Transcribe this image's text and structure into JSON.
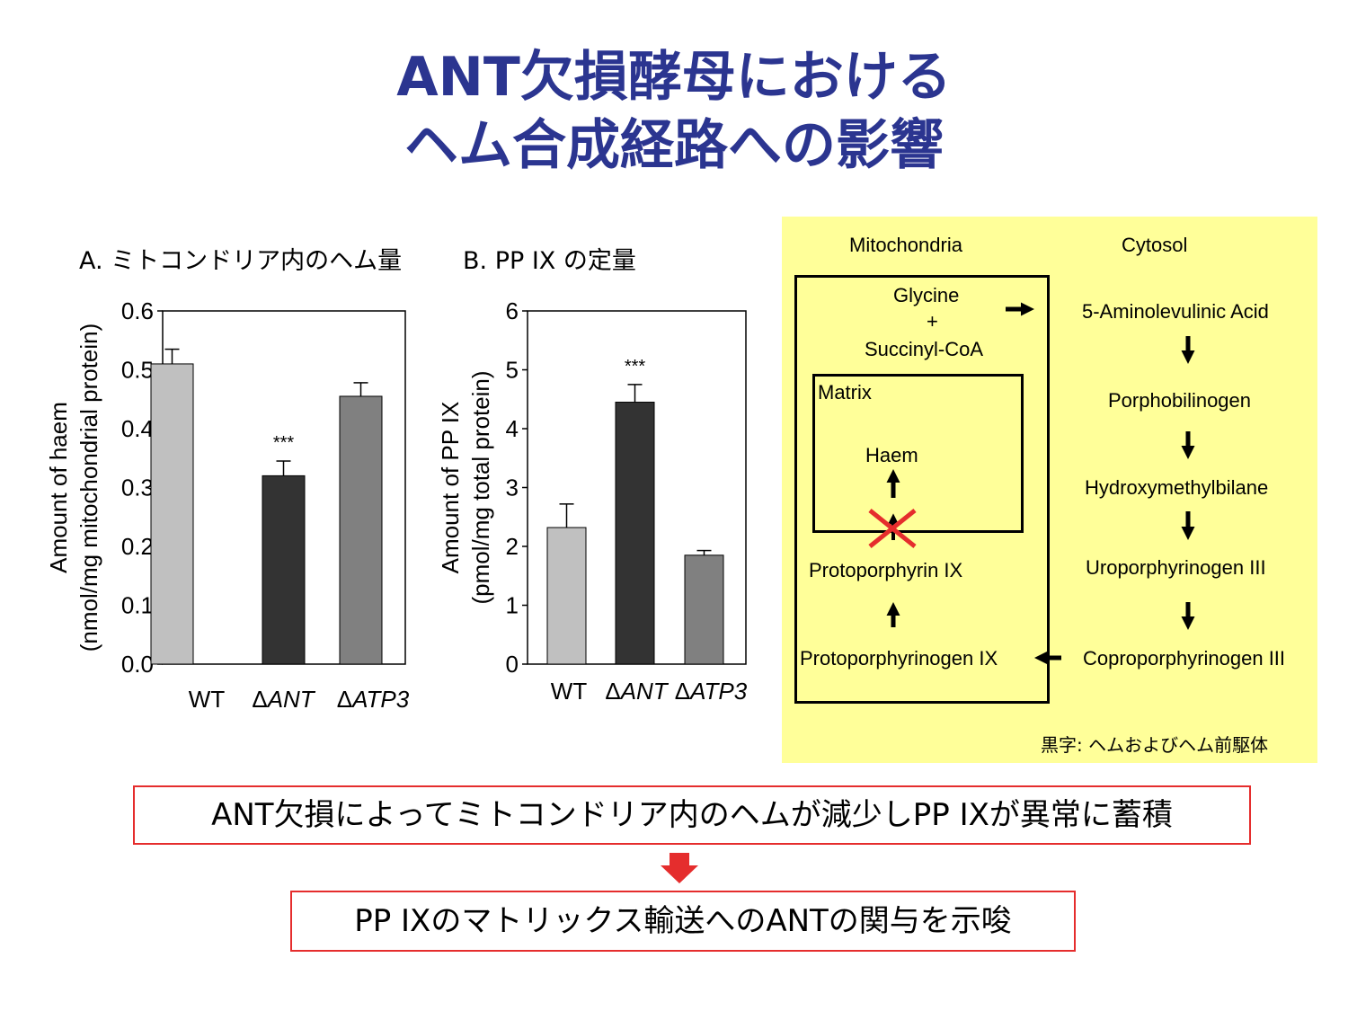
{
  "title_line1": "ANT欠損酵母における",
  "title_line2": "ヘム合成経路への影響",
  "panel_a": {
    "heading": "A. ミトコンドリア内のヘム量",
    "chart_data": {
      "type": "bar",
      "categories": [
        "WT",
        "ΔANT",
        "ΔATP3"
      ],
      "values": [
        0.51,
        0.32,
        0.455
      ],
      "errors": [
        0.025,
        0.025,
        0.023
      ],
      "colors": [
        "#c0c0c0",
        "#333333",
        "#808080"
      ],
      "ylim": [
        0,
        0.6
      ],
      "yticks": [
        "0.0",
        "0.1",
        "0.2",
        "0.3",
        "0.4",
        "0.5",
        "0.6"
      ],
      "ylabel_line1": "Amount of haem",
      "ylabel_line2": "(nmol/mg mitochondrial protein)",
      "annotation": "***",
      "annotation_category": "ΔANT"
    }
  },
  "panel_b": {
    "heading": "B. PP IX の定量",
    "chart_data": {
      "type": "bar",
      "categories": [
        "WT",
        "ΔANT",
        "ΔATP3"
      ],
      "values": [
        2.32,
        4.45,
        1.85
      ],
      "errors": [
        0.4,
        0.3,
        0.08
      ],
      "colors": [
        "#c0c0c0",
        "#333333",
        "#808080"
      ],
      "ylim": [
        0,
        6
      ],
      "yticks": [
        "0",
        "1",
        "2",
        "3",
        "4",
        "5",
        "6"
      ],
      "ylabel_line1": "Amount of PP IX",
      "ylabel_line2": "(pmol/mg total protein)",
      "annotation": "***",
      "annotation_category": "ΔANT"
    }
  },
  "pathway": {
    "mitochondria_label": "Mitochondria",
    "cytosol_label": "Cytosol",
    "glycine": "Glycine",
    "plus": "+",
    "succinyl": "Succinyl-CoA",
    "matrix": "Matrix",
    "haem": "Haem",
    "protoporphyrin": "Protoporphyrin IX",
    "protoporphyrinogen": "Protoporphyrinogen IX",
    "ala": "5-Aminolevulinic Acid",
    "pbg": "Porphobilinogen",
    "hmb": "Hydroxymethylbilane",
    "uro": "Uroporphyrinogen III",
    "copro": "Coproporphyrinogen III",
    "note": "黒字: ヘムおよびヘム前駆体"
  },
  "conclusion1": "ANT欠損によってミトコンドリア内のヘムが減少しPP IXが異常に蓄積",
  "conclusion2": "PP IXのマトリックス輸送へのANTの関与を示唆",
  "colors": {
    "title": "#2b3590",
    "pathway_bg": "#ffff99",
    "highlight_red": "#e52d2d"
  }
}
